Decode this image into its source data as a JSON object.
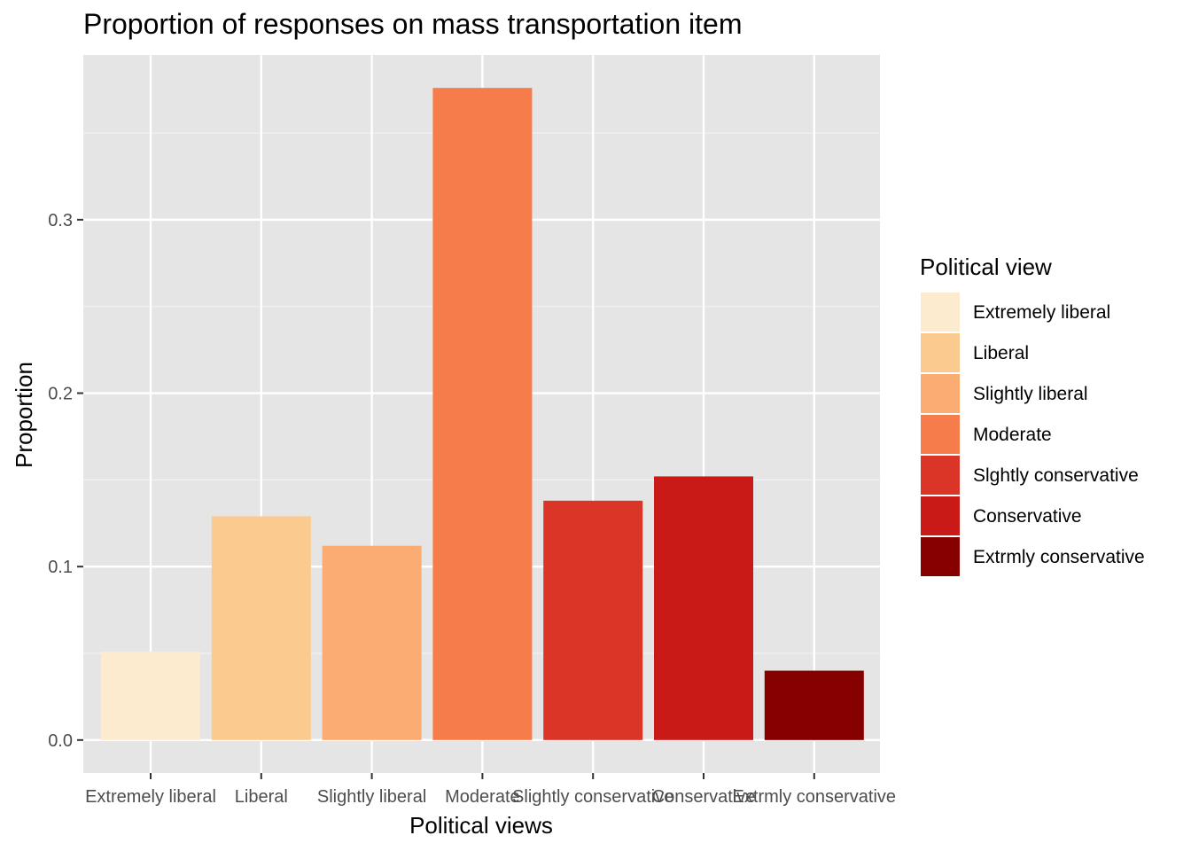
{
  "chart_data": {
    "type": "bar",
    "title": "Proportion of responses on mass transportation item",
    "xlabel": "Political views",
    "ylabel": "Proportion",
    "categories": [
      "Extremely liberal",
      "Liberal",
      "Slightly liberal",
      "Moderate",
      "Slightly conservative",
      "Conservative",
      "Extrmly conservative"
    ],
    "values": [
      0.051,
      0.129,
      0.112,
      0.376,
      0.138,
      0.152,
      0.04
    ],
    "colors": [
      "#fdebcf",
      "#fbca8e",
      "#fbac72",
      "#f77c4b",
      "#db3527",
      "#c91a18",
      "#870000"
    ],
    "yticks": [
      0.0,
      0.1,
      0.2,
      0.3
    ],
    "ytick_labels": [
      "0.0",
      "0.1",
      "0.2",
      "0.3"
    ],
    "ylim": [
      -0.019,
      0.395
    ],
    "grid": true,
    "panel_background": "#e5e5e5",
    "legend": {
      "title": "Political view",
      "placement": "right",
      "entries": [
        "Extremely liberal",
        "Liberal",
        "Slightly liberal",
        "Moderate",
        "Slghtly conservative",
        "Conservative",
        "Extrmly conservative"
      ]
    }
  }
}
